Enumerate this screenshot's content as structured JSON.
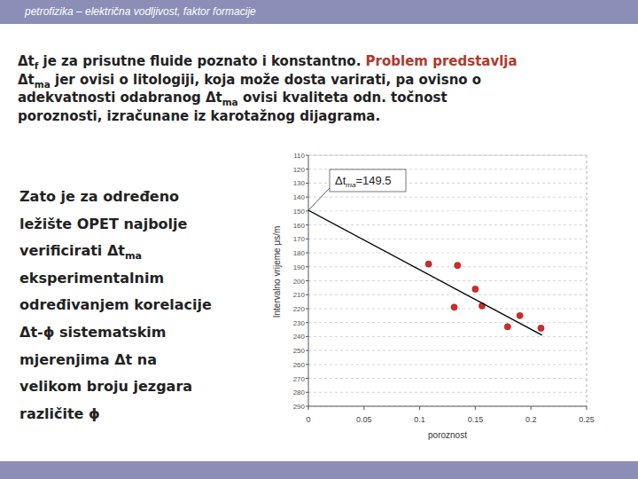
{
  "header": {
    "title": "petrofizika – električna vodljivost, faktor formacije"
  },
  "intro": {
    "lines": [
      [
        {
          "text": "Δt"
        },
        {
          "text": "f",
          "sub": true
        },
        {
          "text": " je za prisutne fluide poznato i konstantno. "
        },
        {
          "text": "Problem predstavlja",
          "accent": true
        }
      ],
      [
        {
          "text": "Δt"
        },
        {
          "text": "ma",
          "sub": true
        },
        {
          "text": "  jer ovisi o litologiji, koja može dosta varirati, pa ovisno o"
        }
      ],
      [
        {
          "text": "adekvatnosti odabranog Δt"
        },
        {
          "text": "ma",
          "sub": true
        },
        {
          "text": " ovisi kvaliteta odn. točnost"
        }
      ],
      [
        {
          "text": "poroznosti, izračunane iz karotažnog dijagrama."
        }
      ]
    ]
  },
  "side": {
    "lines": [
      [
        {
          "text": "Zato je za određeno"
        }
      ],
      [
        {
          "text": "ležište OPET najbolje"
        }
      ],
      [
        {
          "text": "verificirati Δt"
        },
        {
          "text": "ma",
          "sub": true
        }
      ],
      [
        {
          "text": "eksperimentalnim"
        }
      ],
      [
        {
          "text": "određivanjem korelacije"
        }
      ],
      [
        {
          "text": "Δt-ϕ sistematskim"
        }
      ],
      [
        {
          "text": "mjerenjima Δt na"
        }
      ],
      [
        {
          "text": "velikom broju jezgara"
        }
      ],
      [
        {
          "text": "različite ϕ"
        }
      ]
    ]
  },
  "chart_data": {
    "type": "scatter",
    "x_label": "poroznost",
    "y_label": "Intervalno vrijeme  μs/m",
    "xlim": [
      0,
      0.25
    ],
    "xticks": [
      0,
      0.05,
      0.1,
      0.15,
      0.2,
      0.25
    ],
    "ylim": [
      290,
      110
    ],
    "yticks": [
      110,
      120,
      130,
      140,
      150,
      160,
      170,
      180,
      190,
      200,
      210,
      220,
      230,
      240,
      250,
      260,
      270,
      280,
      290
    ],
    "grid": true,
    "annotation": {
      "text": "Δt",
      "sub": "ma",
      "suffix": "=149.5",
      "x": 0,
      "y": 149.5
    },
    "series": [
      {
        "type": "scatter",
        "color": "#d42a2a",
        "marker": "circle",
        "x": [
          0.108,
          0.134,
          0.15,
          0.131,
          0.156,
          0.19,
          0.179,
          0.209
        ],
        "values": [
          188,
          189,
          206,
          219,
          218,
          225,
          233,
          234
        ]
      },
      {
        "type": "line",
        "color": "#000000",
        "line_style": "solid",
        "x": [
          0,
          0.21
        ],
        "values": [
          149.5,
          239
        ]
      }
    ]
  }
}
